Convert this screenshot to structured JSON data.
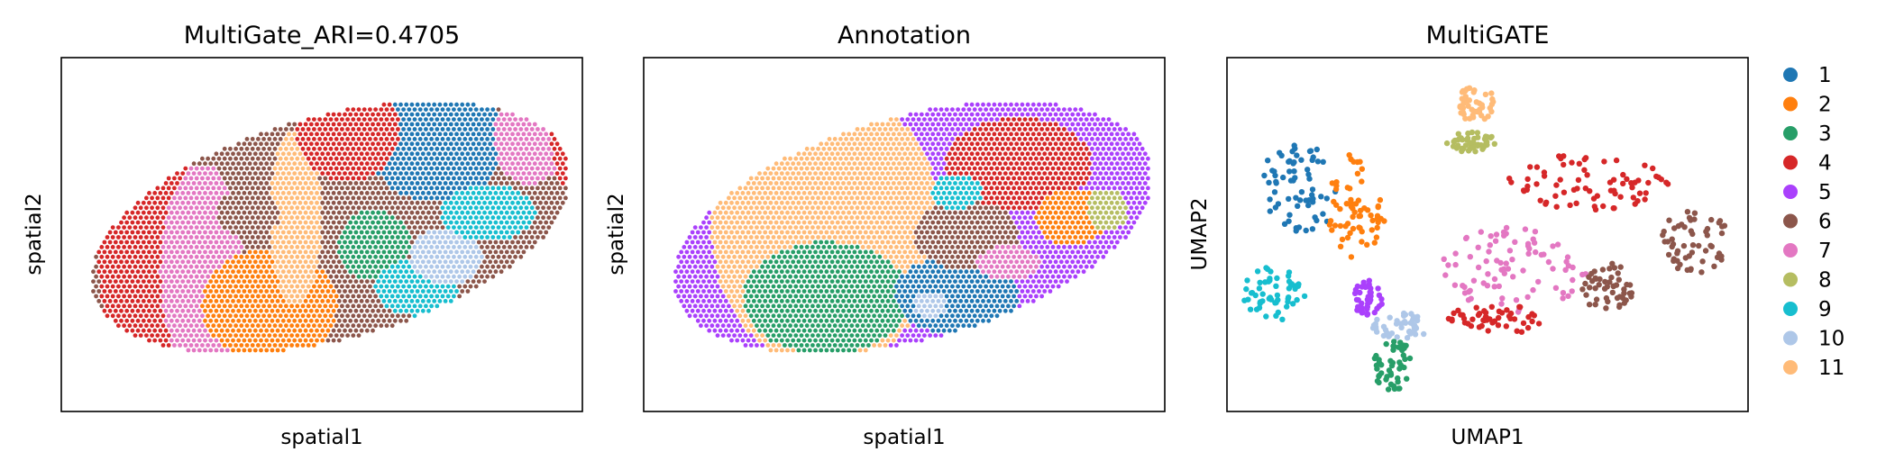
{
  "figure": {
    "panels": [
      {
        "title": "MultiGate_ARI=0.4705",
        "xlabel": "spatial1",
        "ylabel": "spatial2"
      },
      {
        "title": "Annotation",
        "xlabel": "spatial1",
        "ylabel": "spatial2"
      },
      {
        "title": "MultiGATE",
        "xlabel": "UMAP1",
        "ylabel": "UMAP2"
      }
    ],
    "legend": {
      "placement": "right, outside plot",
      "entries": [
        {
          "label": "1",
          "color": "#1f77b4"
        },
        {
          "label": "2",
          "color": "#ff7f0e"
        },
        {
          "label": "3",
          "color": "#279e68"
        },
        {
          "label": "4",
          "color": "#d62728"
        },
        {
          "label": "5",
          "color": "#aa40fc"
        },
        {
          "label": "6",
          "color": "#8c564b"
        },
        {
          "label": "7",
          "color": "#e377c2"
        },
        {
          "label": "8",
          "color": "#b5bd61"
        },
        {
          "label": "9",
          "color": "#17becf"
        },
        {
          "label": "10",
          "color": "#aec7e8"
        },
        {
          "label": "11",
          "color": "#ffbb78"
        }
      ]
    }
  },
  "chart_data": [
    {
      "type": "scatter",
      "title": "MultiGate_ARI=0.4705",
      "xlabel": "spatial1",
      "ylabel": "spatial2",
      "ticks": "none",
      "grid": false,
      "categories": [
        "1",
        "2",
        "3",
        "4",
        "5",
        "6",
        "7",
        "8",
        "9",
        "10",
        "11"
      ],
      "regions": [
        {
          "cluster": "6",
          "cx": 0.08,
          "cy": 0.35,
          "rx": 0.06,
          "ry": 0.28
        },
        {
          "cluster": "4",
          "cx": 0.17,
          "cy": 0.45,
          "rx": 0.1,
          "ry": 0.35
        },
        {
          "cluster": "7",
          "cx": 0.27,
          "cy": 0.4,
          "rx": 0.08,
          "ry": 0.3
        },
        {
          "cluster": "2",
          "cx": 0.4,
          "cy": 0.3,
          "rx": 0.13,
          "ry": 0.16
        },
        {
          "cluster": "11",
          "cx": 0.45,
          "cy": 0.55,
          "rx": 0.05,
          "ry": 0.25
        },
        {
          "cluster": "3",
          "cx": 0.6,
          "cy": 0.47,
          "rx": 0.07,
          "ry": 0.1
        },
        {
          "cluster": "9",
          "cx": 0.68,
          "cy": 0.35,
          "rx": 0.08,
          "ry": 0.08
        },
        {
          "cluster": "10",
          "cx": 0.74,
          "cy": 0.44,
          "rx": 0.07,
          "ry": 0.08
        },
        {
          "cluster": "1",
          "cx": 0.72,
          "cy": 0.76,
          "rx": 0.13,
          "ry": 0.17
        },
        {
          "cluster": "9",
          "cx": 0.82,
          "cy": 0.56,
          "rx": 0.09,
          "ry": 0.08
        },
        {
          "cluster": "7",
          "cx": 0.9,
          "cy": 0.78,
          "rx": 0.07,
          "ry": 0.14
        },
        {
          "cluster": "4",
          "cx": 0.55,
          "cy": 0.8,
          "rx": 0.1,
          "ry": 0.15
        },
        {
          "cluster": "6",
          "cx": 0.36,
          "cy": 0.56,
          "rx": 0.06,
          "ry": 0.07
        },
        {
          "cluster": "4",
          "cx": 0.97,
          "cy": 0.78,
          "rx": 0.03,
          "ry": 0.14
        }
      ]
    },
    {
      "type": "scatter",
      "title": "Annotation",
      "xlabel": "spatial1",
      "ylabel": "spatial2",
      "ticks": "none",
      "grid": false,
      "categories": [
        "1",
        "2",
        "3",
        "4",
        "5",
        "6",
        "7",
        "8",
        "9",
        "10",
        "11"
      ],
      "regions": [
        {
          "cluster": "5",
          "cx": 0.45,
          "cy": 0.5,
          "rx": 0.5,
          "ry": 0.55
        },
        {
          "cluster": "11",
          "cx": 0.35,
          "cy": 0.52,
          "rx": 0.22,
          "ry": 0.4
        },
        {
          "cluster": "3",
          "cx": 0.35,
          "cy": 0.32,
          "rx": 0.16,
          "ry": 0.16
        },
        {
          "cluster": "1",
          "cx": 0.6,
          "cy": 0.33,
          "rx": 0.12,
          "ry": 0.11
        },
        {
          "cluster": "6",
          "cx": 0.62,
          "cy": 0.5,
          "rx": 0.1,
          "ry": 0.1
        },
        {
          "cluster": "4",
          "cx": 0.72,
          "cy": 0.7,
          "rx": 0.14,
          "ry": 0.13
        },
        {
          "cluster": "2",
          "cx": 0.82,
          "cy": 0.55,
          "rx": 0.07,
          "ry": 0.08
        },
        {
          "cluster": "9",
          "cx": 0.6,
          "cy": 0.62,
          "rx": 0.05,
          "ry": 0.05
        },
        {
          "cluster": "7",
          "cx": 0.7,
          "cy": 0.42,
          "rx": 0.06,
          "ry": 0.05
        },
        {
          "cluster": "8",
          "cx": 0.89,
          "cy": 0.57,
          "rx": 0.04,
          "ry": 0.06
        },
        {
          "cluster": "10",
          "cx": 0.55,
          "cy": 0.3,
          "rx": 0.03,
          "ry": 0.04
        }
      ]
    },
    {
      "type": "scatter",
      "title": "MultiGATE",
      "xlabel": "UMAP1",
      "ylabel": "UMAP2",
      "ticks": "none",
      "grid": false,
      "categories": [
        "1",
        "2",
        "3",
        "4",
        "5",
        "6",
        "7",
        "8",
        "9",
        "10",
        "11"
      ],
      "clusters": [
        {
          "cluster": "11",
          "cx": 0.48,
          "cy": 0.87,
          "rx": 0.035,
          "ry": 0.06
        },
        {
          "cluster": "8",
          "cx": 0.47,
          "cy": 0.76,
          "rx": 0.05,
          "ry": 0.03
        },
        {
          "cluster": "1",
          "cx": 0.14,
          "cy": 0.63,
          "rx": 0.08,
          "ry": 0.13
        },
        {
          "cluster": "2",
          "cx": 0.25,
          "cy": 0.58,
          "rx": 0.06,
          "ry": 0.15
        },
        {
          "cluster": "4",
          "cx": 0.7,
          "cy": 0.65,
          "rx": 0.16,
          "ry": 0.08
        },
        {
          "cluster": "6",
          "cx": 0.9,
          "cy": 0.48,
          "rx": 0.07,
          "ry": 0.09
        },
        {
          "cluster": "7",
          "cx": 0.55,
          "cy": 0.4,
          "rx": 0.14,
          "ry": 0.12
        },
        {
          "cluster": "6",
          "cx": 0.73,
          "cy": 0.35,
          "rx": 0.05,
          "ry": 0.07
        },
        {
          "cluster": "4",
          "cx": 0.52,
          "cy": 0.26,
          "rx": 0.1,
          "ry": 0.04
        },
        {
          "cluster": "9",
          "cx": 0.09,
          "cy": 0.33,
          "rx": 0.06,
          "ry": 0.09
        },
        {
          "cluster": "5",
          "cx": 0.27,
          "cy": 0.32,
          "rx": 0.03,
          "ry": 0.05
        },
        {
          "cluster": "10",
          "cx": 0.33,
          "cy": 0.24,
          "rx": 0.06,
          "ry": 0.04
        },
        {
          "cluster": "3",
          "cx": 0.32,
          "cy": 0.13,
          "rx": 0.04,
          "ry": 0.07
        }
      ]
    }
  ]
}
